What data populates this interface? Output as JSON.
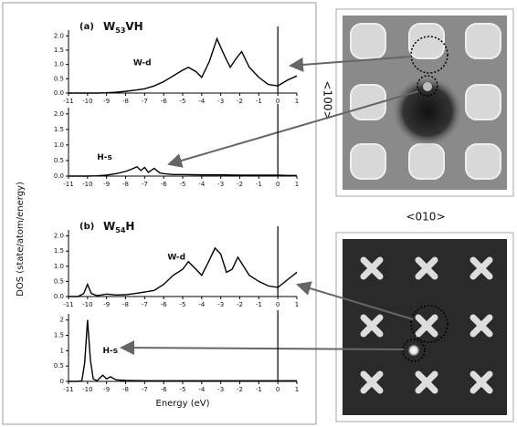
{
  "figure": {
    "ylabel": "DOS (state/atom/energy)",
    "xlabel": "Energy (eV)",
    "top_image_xlabel": "<010>",
    "top_image_ylabel": "<100>"
  },
  "chart_data": [
    {
      "type": "line",
      "panel_label": "(a)",
      "title": {
        "main": "W",
        "sub": "53",
        "rest": "VH"
      },
      "x": [
        -11,
        -10.5,
        -10,
        -9.5,
        -9,
        -8.5,
        -8,
        -7.5,
        -7,
        -6.5,
        -6,
        -5.5,
        -5,
        -4.7,
        -4.3,
        -4,
        -3.6,
        -3.2,
        -2.8,
        -2.5,
        -2.2,
        -1.9,
        -1.5,
        -1,
        -0.5,
        0,
        0.5,
        1
      ],
      "series": [
        {
          "name": "W-d",
          "color": "#000000",
          "values": [
            0,
            0,
            0,
            0,
            0.01,
            0.03,
            0.06,
            0.1,
            0.15,
            0.25,
            0.4,
            0.6,
            0.8,
            0.9,
            0.75,
            0.55,
            1.1,
            1.9,
            1.3,
            0.9,
            1.2,
            1.45,
            0.9,
            0.55,
            0.3,
            0.25,
            0.45,
            0.6
          ]
        }
      ],
      "xlim": [
        -11,
        1
      ],
      "ylim": [
        0,
        2.2
      ],
      "xticks": [
        -11,
        -10,
        -9,
        -8,
        -7,
        -6,
        -5,
        -4,
        -3,
        -2,
        -1,
        0,
        1
      ],
      "yticks": [
        {
          "value": 0,
          "label": "0.0"
        },
        {
          "value": 0.5,
          "label": "0.5"
        },
        {
          "value": 1,
          "label": "1.0"
        },
        {
          "value": 1.5,
          "label": "1.5"
        },
        {
          "value": 2,
          "label": "2.0"
        }
      ],
      "vline": 0
    },
    {
      "type": "line",
      "x": [
        -11,
        -10.5,
        -10,
        -9.5,
        -9,
        -8.5,
        -8,
        -7.7,
        -7.4,
        -7.2,
        -7,
        -6.8,
        -6.5,
        -6.2,
        -6,
        -5.5,
        -5,
        -4,
        -3,
        -2,
        -1,
        0,
        0.5,
        1
      ],
      "series": [
        {
          "name": "H-s",
          "color": "#000000",
          "values": [
            0,
            0,
            0,
            0.01,
            0.03,
            0.08,
            0.15,
            0.22,
            0.3,
            0.18,
            0.28,
            0.12,
            0.25,
            0.1,
            0.08,
            0.05,
            0.05,
            0.04,
            0.04,
            0.03,
            0.03,
            0.03,
            0.02,
            0.02
          ]
        }
      ],
      "xlim": [
        -11,
        1
      ],
      "ylim": [
        0,
        2.2
      ],
      "xticks": [
        -11,
        -10,
        -9,
        -8,
        -7,
        -6,
        -5,
        -4,
        -3,
        -2,
        -1,
        0,
        1
      ],
      "yticks": [
        {
          "value": 0,
          "label": "0.0"
        },
        {
          "value": 0.5,
          "label": "0.5"
        },
        {
          "value": 1,
          "label": "1.0"
        },
        {
          "value": 1.5,
          "label": "1.5"
        },
        {
          "value": 2,
          "label": "2.0"
        }
      ],
      "vline": 0
    },
    {
      "type": "line",
      "panel_label": "(b)",
      "title": {
        "main": "W",
        "sub": "54",
        "rest": "H"
      },
      "x": [
        -11,
        -10.5,
        -10.2,
        -10,
        -9.8,
        -9.5,
        -9,
        -8.5,
        -8,
        -7.5,
        -7,
        -6.5,
        -6,
        -5.5,
        -5,
        -4.7,
        -4.3,
        -4,
        -3.6,
        -3.3,
        -3,
        -2.7,
        -2.4,
        -2.1,
        -1.8,
        -1.5,
        -1,
        -0.5,
        0,
        0.5,
        1
      ],
      "series": [
        {
          "name": "W-d",
          "color": "#000000",
          "values": [
            0,
            0,
            0.1,
            0.4,
            0.1,
            0.03,
            0.08,
            0.05,
            0.06,
            0.1,
            0.15,
            0.2,
            0.4,
            0.7,
            0.9,
            1.15,
            0.9,
            0.7,
            1.2,
            1.6,
            1.4,
            0.8,
            0.9,
            1.3,
            1.0,
            0.7,
            0.5,
            0.35,
            0.3,
            0.55,
            0.8
          ]
        }
      ],
      "xlim": [
        -11,
        1
      ],
      "ylim": [
        0,
        2.2
      ],
      "xticks": [
        -11,
        -10,
        -9,
        -8,
        -7,
        -6,
        -5,
        -4,
        -3,
        -2,
        -1,
        0,
        1
      ],
      "yticks": [
        {
          "value": 0,
          "label": "0.0"
        },
        {
          "value": 0.5,
          "label": "0.5"
        },
        {
          "value": 1,
          "label": "1.0"
        },
        {
          "value": 1.5,
          "label": "1.5"
        },
        {
          "value": 2,
          "label": "2.0"
        }
      ],
      "vline": 0
    },
    {
      "type": "line",
      "x": [
        -11,
        -10.5,
        -10.3,
        -10.15,
        -10,
        -9.85,
        -9.7,
        -9.5,
        -9.2,
        -9,
        -8.8,
        -8.5,
        -8,
        -7,
        -6,
        -5,
        -4,
        -3,
        -2,
        -1,
        0,
        1
      ],
      "series": [
        {
          "name": "H-s",
          "color": "#000000",
          "values": [
            0,
            0,
            0.02,
            0.6,
            2.0,
            0.7,
            0.08,
            0.02,
            0.2,
            0.08,
            0.15,
            0.05,
            0.03,
            0.02,
            0.02,
            0.02,
            0.02,
            0.02,
            0.02,
            0.02,
            0.02,
            0.02
          ]
        }
      ],
      "xlim": [
        -11,
        1
      ],
      "ylim": [
        0,
        2.2
      ],
      "xticks": [
        -11,
        -10,
        -9,
        -8,
        -7,
        -6,
        -5,
        -4,
        -3,
        -2,
        -1,
        0,
        1
      ],
      "yticks": [
        {
          "value": 0,
          "label": "0"
        },
        {
          "value": 0.5,
          "label": "0.5"
        },
        {
          "value": 1,
          "label": "1"
        },
        {
          "value": 1.5,
          "label": "1.5"
        },
        {
          "value": 2,
          "label": "2"
        }
      ],
      "vline": 0
    }
  ]
}
